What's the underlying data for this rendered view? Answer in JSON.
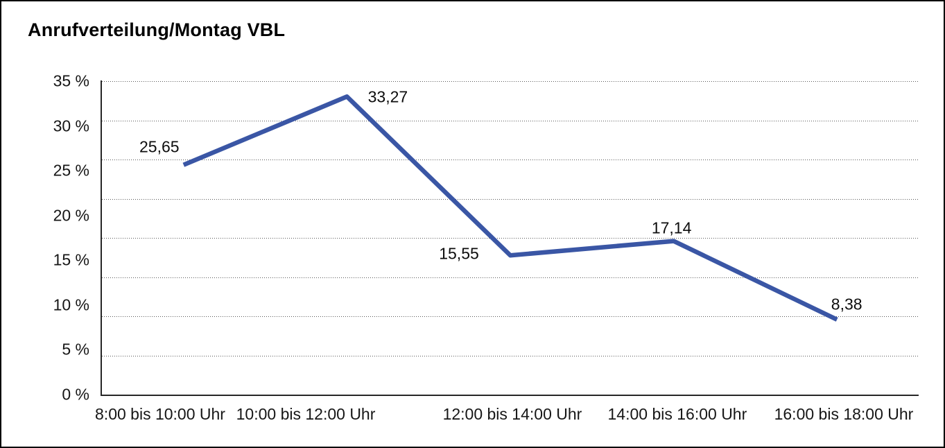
{
  "page": {
    "title": "Anrufverteilung/Montag VBL"
  },
  "chart_data": {
    "type": "line",
    "title": "Anrufverteilung/Montag VBL",
    "categories": [
      "8:00 bis 10:00 Uhr",
      "10:00 bis 12:00 Uhr",
      "12:00 bis 14:00 Uhr",
      "14:00 bis 16:00 Uhr",
      "16:00 bis 18:00 Uhr"
    ],
    "values": [
      25.65,
      33.27,
      15.55,
      17.14,
      8.38
    ],
    "value_labels": [
      "25,65",
      "33,27",
      "15,55",
      "17,14",
      "8,38"
    ],
    "xlabel": "",
    "ylabel": "",
    "ylim": [
      0,
      35
    ],
    "y_tick_labels": [
      "35 %",
      "30 %",
      "25 %",
      "20 %",
      "15 %",
      "10 %",
      "5 %",
      "0 %"
    ],
    "y_tick_values": [
      35,
      30,
      25,
      20,
      15,
      10,
      5,
      0
    ],
    "grid": {
      "style": "dotted",
      "horizontal_lines": 8,
      "vertical_lines": 0
    },
    "legend_position": "none",
    "line_color": "#3A56A5",
    "axis_color": "#262626",
    "background_color": "#ffffff"
  }
}
